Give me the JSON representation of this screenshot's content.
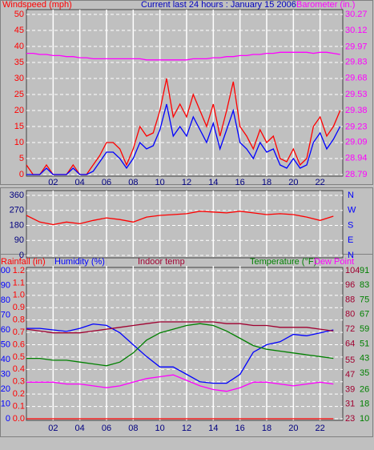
{
  "chart_data": [
    {
      "type": "line",
      "title": "Current last 24 hours : January 15 2006",
      "ylabel": "Windspeed (mph)",
      "y2label": "Barometer (in.)",
      "x": [
        0,
        0.5,
        1,
        1.5,
        2,
        2.5,
        3,
        3.5,
        4,
        4.5,
        5,
        5.5,
        6,
        6.5,
        7,
        7.5,
        8,
        8.5,
        9,
        9.5,
        10,
        10.5,
        11,
        11.5,
        12,
        12.5,
        13,
        13.5,
        14,
        14.5,
        15,
        15.5,
        16,
        16.5,
        17,
        17.5,
        18,
        18.5,
        19,
        19.5,
        20,
        20.5,
        21,
        21.5,
        22,
        22.5,
        23,
        23.5
      ],
      "xlim": [
        0,
        23.7
      ],
      "xticks": [
        {
          "value": 2,
          "label": "02"
        },
        {
          "value": 4,
          "label": "04"
        },
        {
          "value": 6,
          "label": "06"
        },
        {
          "value": 8,
          "label": "08"
        },
        {
          "value": 10,
          "label": "10"
        },
        {
          "value": 12,
          "label": "12"
        },
        {
          "value": 14,
          "label": "14"
        },
        {
          "value": 16,
          "label": "16"
        },
        {
          "value": 18,
          "label": "18"
        },
        {
          "value": 20,
          "label": "20"
        },
        {
          "value": 22,
          "label": "22"
        }
      ],
      "ylim": [
        0,
        50
      ],
      "yticks": [
        0,
        5,
        10,
        15,
        20,
        25,
        30,
        35,
        40,
        45,
        50
      ],
      "y2lim": [
        28.79,
        30.27
      ],
      "y2ticks": [
        28.79,
        28.94,
        29.09,
        29.23,
        29.38,
        29.53,
        29.68,
        29.83,
        29.97,
        30.12,
        30.27
      ],
      "grid": true,
      "series": [
        {
          "color": "#ff0000",
          "values": [
            3,
            0,
            0,
            3,
            0,
            0,
            0,
            3,
            0,
            0,
            3,
            6,
            10,
            10,
            8,
            3,
            8,
            15,
            12,
            13,
            20,
            30,
            18,
            22,
            18,
            25,
            20,
            15,
            22,
            12,
            20,
            29,
            15,
            12,
            8,
            14,
            10,
            12,
            5,
            4,
            8,
            3,
            5,
            15,
            18,
            12,
            15,
            20
          ]
        },
        {
          "color": "#0000ff",
          "values": [
            0,
            0,
            0,
            2,
            0,
            0,
            0,
            2,
            0,
            0,
            1,
            4,
            7,
            7,
            5,
            2,
            5,
            10,
            8,
            9,
            14,
            22,
            12,
            15,
            12,
            18,
            14,
            10,
            16,
            8,
            14,
            20,
            10,
            8,
            5,
            10,
            7,
            8,
            3,
            2,
            5,
            2,
            3,
            10,
            13,
            8,
            11,
            15
          ]
        },
        {
          "color": "#ff00ff",
          "axis": "y2",
          "values": [
            29.91,
            29.91,
            29.9,
            29.9,
            29.89,
            29.89,
            29.88,
            29.88,
            29.87,
            29.87,
            29.86,
            29.86,
            29.86,
            29.86,
            29.86,
            29.86,
            29.86,
            29.86,
            29.85,
            29.85,
            29.85,
            29.85,
            29.85,
            29.85,
            29.85,
            29.86,
            29.86,
            29.86,
            29.87,
            29.87,
            29.88,
            29.88,
            29.89,
            29.89,
            29.9,
            29.9,
            29.91,
            29.91,
            29.92,
            29.92,
            29.92,
            29.92,
            29.92,
            29.91,
            29.92,
            29.92,
            29.91,
            29.9
          ]
        }
      ]
    },
    {
      "type": "line",
      "x": [
        0,
        1,
        2,
        3,
        4,
        5,
        6,
        7,
        8,
        9,
        10,
        11,
        12,
        13,
        14,
        15,
        16,
        17,
        18,
        19,
        20,
        21,
        22,
        23
      ],
      "xlim": [
        0,
        23.7
      ],
      "xticks": [
        2,
        4,
        6,
        8,
        10,
        12,
        14,
        16,
        18,
        20,
        22
      ],
      "ylim": [
        0,
        360
      ],
      "yticks": [
        0,
        90,
        180,
        270,
        360
      ],
      "y2lim": [
        0,
        360
      ],
      "y2ticks": [
        {
          "value": 0,
          "label": "N"
        },
        {
          "value": 90,
          "label": "E"
        },
        {
          "value": 180,
          "label": "S"
        },
        {
          "value": 270,
          "label": "W"
        },
        {
          "value": 360,
          "label": "N"
        }
      ],
      "grid": true,
      "series": [
        {
          "color": "#ff0000",
          "values": [
            240,
            200,
            185,
            200,
            190,
            210,
            225,
            215,
            200,
            230,
            240,
            245,
            250,
            265,
            260,
            255,
            265,
            255,
            245,
            250,
            245,
            230,
            210,
            235
          ]
        }
      ]
    },
    {
      "type": "line",
      "x": [
        0,
        1,
        2,
        3,
        4,
        5,
        6,
        7,
        8,
        9,
        10,
        11,
        12,
        13,
        14,
        15,
        16,
        17,
        18,
        19,
        20,
        21,
        22,
        23
      ],
      "xlim": [
        0,
        23.7
      ],
      "xticks": [
        {
          "value": 2,
          "label": "02"
        },
        {
          "value": 4,
          "label": "04"
        },
        {
          "value": 6,
          "label": "06"
        },
        {
          "value": 8,
          "label": "08"
        },
        {
          "value": 10,
          "label": "10"
        },
        {
          "value": 12,
          "label": "12"
        },
        {
          "value": 14,
          "label": "14"
        },
        {
          "value": 16,
          "label": "16"
        },
        {
          "value": 18,
          "label": "18"
        },
        {
          "value": 20,
          "label": "20"
        },
        {
          "value": 22,
          "label": "22"
        }
      ],
      "grid": true,
      "series": [
        {
          "name": "Rainfall (in)",
          "color": "#ff0000",
          "ylim": [
            0,
            1.2
          ],
          "yticks": [
            {
              "value": 0,
              "label": "0.0"
            },
            0.1,
            0.2,
            0.3,
            0.4,
            0.5,
            0.6,
            0.7,
            0.8,
            0.9,
            {
              "value": 1,
              "label": "1.0"
            },
            1.1,
            1.2
          ],
          "values": [
            0,
            0,
            0,
            0,
            0,
            0,
            0,
            0,
            0,
            0,
            0,
            0,
            0,
            0,
            0,
            0,
            0,
            0,
            0,
            0,
            0,
            0,
            0,
            0
          ]
        },
        {
          "name": "Humidity (%)",
          "color": "#0000ff",
          "ylim": [
            0,
            100
          ],
          "yticks": [
            0,
            10,
            20,
            30,
            40,
            50,
            60,
            70,
            80,
            90,
            100
          ],
          "values": [
            61,
            61,
            60,
            59,
            61,
            64,
            63,
            58,
            50,
            42,
            35,
            35,
            30,
            25,
            24,
            24,
            30,
            45,
            50,
            52,
            57,
            56,
            58,
            60
          ]
        },
        {
          "name": "Indoor temp",
          "color": "#a00030",
          "ylim": [
            23,
            104
          ],
          "yticks": [
            23,
            31,
            39,
            47,
            55,
            64,
            72,
            80,
            88,
            96,
            104
          ],
          "values": [
            72,
            71,
            70,
            70,
            70,
            71,
            72,
            73,
            74,
            75,
            76,
            76,
            76,
            76,
            76,
            75,
            75,
            74,
            74,
            73,
            73,
            73,
            72,
            71
          ]
        },
        {
          "name": "Temperature (°F)",
          "color": "#008000",
          "ylim": [
            10,
            91
          ],
          "yticks": [
            10,
            18,
            26,
            35,
            43,
            51,
            59,
            67,
            75,
            83,
            91
          ],
          "values": [
            43,
            43,
            42,
            42,
            41,
            40,
            39,
            41,
            46,
            53,
            57,
            59,
            61,
            62,
            61,
            58,
            54,
            50,
            48,
            47,
            46,
            45,
            44,
            43
          ]
        },
        {
          "name": "Dew Point",
          "color": "#ff00ff",
          "ylim": [
            10,
            91
          ],
          "values": [
            30,
            30,
            30,
            29,
            29,
            28,
            27,
            28,
            30,
            32,
            33,
            34,
            31,
            28,
            26,
            25,
            27,
            30,
            30,
            29,
            28,
            29,
            30,
            29
          ]
        }
      ]
    }
  ]
}
